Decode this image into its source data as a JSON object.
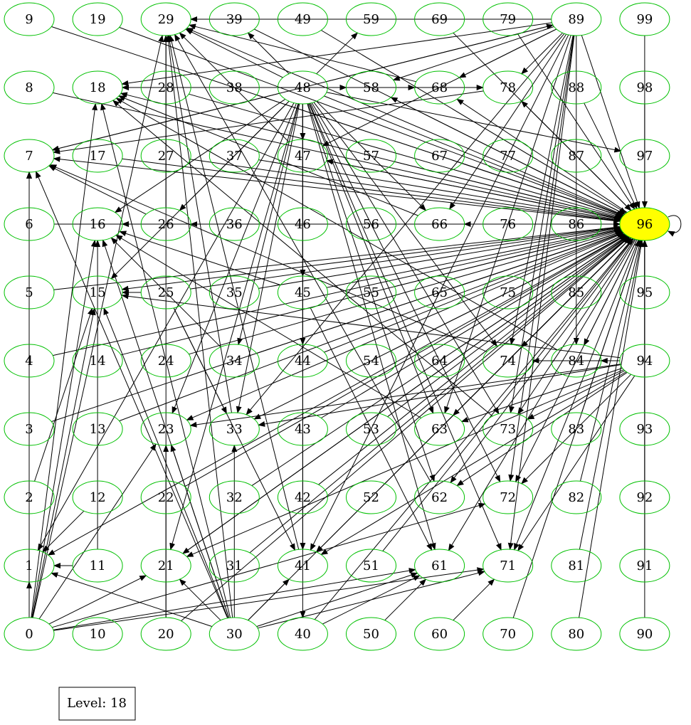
{
  "graph": {
    "highlight_color": "#ffff00",
    "node_stroke_color": "#00c000",
    "edge_color": "#000000",
    "highlighted_node": "96",
    "nodes": [
      "0",
      "1",
      "2",
      "3",
      "4",
      "5",
      "6",
      "7",
      "8",
      "9",
      "10",
      "11",
      "12",
      "13",
      "14",
      "15",
      "16",
      "17",
      "18",
      "19",
      "20",
      "21",
      "22",
      "23",
      "24",
      "25",
      "26",
      "27",
      "28",
      "29",
      "30",
      "31",
      "32",
      "33",
      "34",
      "35",
      "36",
      "37",
      "38",
      "39",
      "40",
      "41",
      "42",
      "43",
      "44",
      "45",
      "46",
      "47",
      "48",
      "49",
      "50",
      "51",
      "52",
      "53",
      "54",
      "55",
      "56",
      "57",
      "58",
      "59",
      "60",
      "61",
      "62",
      "63",
      "64",
      "65",
      "66",
      "67",
      "68",
      "69",
      "70",
      "71",
      "72",
      "73",
      "74",
      "75",
      "76",
      "77",
      "78",
      "79",
      "80",
      "81",
      "82",
      "83",
      "84",
      "85",
      "86",
      "87",
      "88",
      "89",
      "90",
      "91",
      "92",
      "93",
      "94",
      "95",
      "96",
      "97",
      "98",
      "99"
    ],
    "edges": [
      [
        "0",
        "1"
      ],
      [
        "1",
        "7"
      ],
      [
        "0",
        "7"
      ],
      [
        "0",
        "15"
      ],
      [
        "0",
        "16"
      ],
      [
        "0",
        "18"
      ],
      [
        "0",
        "21"
      ],
      [
        "0",
        "23"
      ],
      [
        "0",
        "29"
      ],
      [
        "0",
        "61"
      ],
      [
        "0",
        "71"
      ],
      [
        "0",
        "72"
      ],
      [
        "0",
        "7"
      ],
      [
        "2",
        "15"
      ],
      [
        "3",
        "96"
      ],
      [
        "4",
        "96"
      ],
      [
        "5",
        "96"
      ],
      [
        "6",
        "96"
      ],
      [
        "8",
        "96"
      ],
      [
        "9",
        "96"
      ],
      [
        "11",
        "16"
      ],
      [
        "11",
        "1"
      ],
      [
        "12",
        "1"
      ],
      [
        "13",
        "96"
      ],
      [
        "14",
        "96"
      ],
      [
        "17",
        "96"
      ],
      [
        "19",
        "96"
      ],
      [
        "20",
        "23"
      ],
      [
        "20",
        "29"
      ],
      [
        "20",
        "96"
      ],
      [
        "21",
        "96"
      ],
      [
        "22",
        "96"
      ],
      [
        "24",
        "96"
      ],
      [
        "25",
        "15"
      ],
      [
        "25",
        "33"
      ],
      [
        "25",
        "41"
      ],
      [
        "25",
        "96"
      ],
      [
        "27",
        "96"
      ],
      [
        "28",
        "96"
      ],
      [
        "30",
        "1"
      ],
      [
        "30",
        "7"
      ],
      [
        "30",
        "15"
      ],
      [
        "30",
        "16"
      ],
      [
        "30",
        "18"
      ],
      [
        "30",
        "21"
      ],
      [
        "30",
        "23"
      ],
      [
        "30",
        "29"
      ],
      [
        "30",
        "33"
      ],
      [
        "30",
        "41"
      ],
      [
        "30",
        "61"
      ],
      [
        "30",
        "71"
      ],
      [
        "30",
        "96"
      ],
      [
        "31",
        "96"
      ],
      [
        "32",
        "96"
      ],
      [
        "34",
        "96"
      ],
      [
        "35",
        "96"
      ],
      [
        "36",
        "96"
      ],
      [
        "37",
        "96"
      ],
      [
        "38",
        "96"
      ],
      [
        "39",
        "29"
      ],
      [
        "39",
        "96"
      ],
      [
        "40",
        "61"
      ],
      [
        "40",
        "96"
      ],
      [
        "42",
        "96"
      ],
      [
        "43",
        "96"
      ],
      [
        "44",
        "96"
      ],
      [
        "45",
        "96"
      ],
      [
        "46",
        "96"
      ],
      [
        "47",
        "96"
      ],
      [
        "48",
        "1"
      ],
      [
        "48",
        "7"
      ],
      [
        "48",
        "15"
      ],
      [
        "48",
        "16"
      ],
      [
        "48",
        "18"
      ],
      [
        "48",
        "21"
      ],
      [
        "48",
        "23"
      ],
      [
        "48",
        "26"
      ],
      [
        "48",
        "29"
      ],
      [
        "48",
        "33"
      ],
      [
        "48",
        "34"
      ],
      [
        "48",
        "39"
      ],
      [
        "48",
        "40"
      ],
      [
        "48",
        "41"
      ],
      [
        "48",
        "44"
      ],
      [
        "48",
        "45"
      ],
      [
        "48",
        "47"
      ],
      [
        "48",
        "58"
      ],
      [
        "48",
        "59"
      ],
      [
        "48",
        "61"
      ],
      [
        "48",
        "62"
      ],
      [
        "48",
        "63"
      ],
      [
        "48",
        "66"
      ],
      [
        "48",
        "68"
      ],
      [
        "48",
        "71"
      ],
      [
        "48",
        "72"
      ],
      [
        "48",
        "73"
      ],
      [
        "48",
        "74"
      ],
      [
        "48",
        "78"
      ],
      [
        "48",
        "89"
      ],
      [
        "48",
        "96"
      ],
      [
        "48",
        "97"
      ],
      [
        "49",
        "96"
      ],
      [
        "50",
        "61"
      ],
      [
        "51",
        "96"
      ],
      [
        "52",
        "96"
      ],
      [
        "53",
        "96"
      ],
      [
        "54",
        "96"
      ],
      [
        "55",
        "96"
      ],
      [
        "56",
        "96"
      ],
      [
        "57",
        "96"
      ],
      [
        "60",
        "71"
      ],
      [
        "64",
        "96"
      ],
      [
        "65",
        "96"
      ],
      [
        "67",
        "96"
      ],
      [
        "69",
        "96"
      ],
      [
        "70",
        "96"
      ],
      [
        "75",
        "96"
      ],
      [
        "76",
        "96"
      ],
      [
        "77",
        "96"
      ],
      [
        "79",
        "96"
      ],
      [
        "80",
        "96"
      ],
      [
        "81",
        "96"
      ],
      [
        "82",
        "96"
      ],
      [
        "83",
        "96"
      ],
      [
        "85",
        "96"
      ],
      [
        "86",
        "96"
      ],
      [
        "87",
        "96"
      ],
      [
        "88",
        "96"
      ],
      [
        "89",
        "7"
      ],
      [
        "89",
        "18"
      ],
      [
        "89",
        "29"
      ],
      [
        "89",
        "33"
      ],
      [
        "89",
        "41"
      ],
      [
        "89",
        "47"
      ],
      [
        "89",
        "58"
      ],
      [
        "89",
        "63"
      ],
      [
        "89",
        "66"
      ],
      [
        "89",
        "68"
      ],
      [
        "89",
        "71"
      ],
      [
        "89",
        "72"
      ],
      [
        "89",
        "73"
      ],
      [
        "89",
        "74"
      ],
      [
        "89",
        "78"
      ],
      [
        "89",
        "84"
      ],
      [
        "89",
        "96"
      ],
      [
        "90",
        "96"
      ],
      [
        "91",
        "96"
      ],
      [
        "92",
        "96"
      ],
      [
        "93",
        "96"
      ],
      [
        "94",
        "15"
      ],
      [
        "94",
        "21"
      ],
      [
        "94",
        "23"
      ],
      [
        "94",
        "33"
      ],
      [
        "94",
        "41"
      ],
      [
        "94",
        "62"
      ],
      [
        "94",
        "63"
      ],
      [
        "94",
        "71"
      ],
      [
        "94",
        "72"
      ],
      [
        "94",
        "73"
      ],
      [
        "94",
        "74"
      ],
      [
        "94",
        "84"
      ],
      [
        "94",
        "96"
      ],
      [
        "95",
        "96"
      ],
      [
        "98",
        "96"
      ],
      [
        "99",
        "96"
      ],
      [
        "96",
        "1"
      ],
      [
        "96",
        "7"
      ],
      [
        "96",
        "15"
      ],
      [
        "96",
        "16"
      ],
      [
        "96",
        "18"
      ],
      [
        "96",
        "21"
      ],
      [
        "96",
        "23"
      ],
      [
        "96",
        "26"
      ],
      [
        "96",
        "29"
      ],
      [
        "96",
        "33"
      ],
      [
        "96",
        "41"
      ],
      [
        "96",
        "47"
      ],
      [
        "96",
        "58"
      ],
      [
        "96",
        "61"
      ],
      [
        "96",
        "62"
      ],
      [
        "96",
        "63"
      ],
      [
        "96",
        "66"
      ],
      [
        "96",
        "68"
      ],
      [
        "96",
        "71"
      ],
      [
        "96",
        "72"
      ],
      [
        "96",
        "73"
      ],
      [
        "96",
        "74"
      ],
      [
        "96",
        "78"
      ],
      [
        "96",
        "84"
      ],
      [
        "96",
        "96"
      ],
      [
        "26",
        "7"
      ],
      [
        "26",
        "16"
      ],
      [
        "26",
        "29"
      ],
      [
        "33",
        "29"
      ],
      [
        "34",
        "16"
      ],
      [
        "41",
        "29"
      ],
      [
        "45",
        "16"
      ],
      [
        "45",
        "61"
      ],
      [
        "47",
        "29"
      ],
      [
        "58",
        "18"
      ],
      [
        "62",
        "29"
      ],
      [
        "63",
        "16"
      ],
      [
        "66",
        "18"
      ],
      [
        "68",
        "29"
      ],
      [
        "73",
        "18"
      ],
      [
        "74",
        "7"
      ],
      [
        "78",
        "7"
      ],
      [
        "84",
        "18"
      ]
    ]
  },
  "legend": {
    "level_label": "Level: 18"
  }
}
